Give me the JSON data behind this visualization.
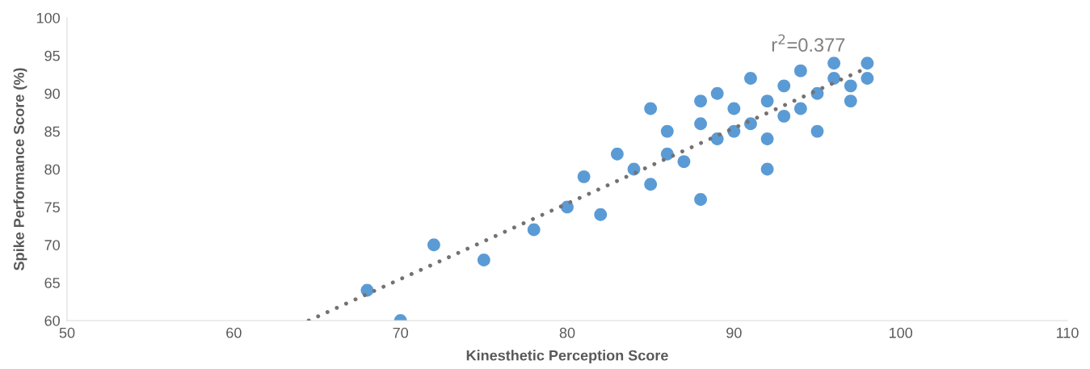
{
  "chart_data": {
    "type": "scatter",
    "xlabel": "Kinesthetic Perception Score",
    "ylabel": "Spike Performance Score (%)",
    "xlim": [
      50,
      110
    ],
    "xticks": [
      50,
      60,
      70,
      80,
      90,
      100,
      110
    ],
    "ylim": [
      60,
      100
    ],
    "yticks": [
      60,
      65,
      70,
      75,
      80,
      85,
      90,
      95,
      100
    ],
    "grid": false,
    "legend": false,
    "series": [
      {
        "marker": "circle",
        "color": "#5b9bd5",
        "x": [
          68,
          70,
          72,
          75,
          78,
          80,
          81,
          82,
          83,
          84,
          85,
          85,
          86,
          86,
          87,
          88,
          88,
          88,
          89,
          89,
          90,
          90,
          91,
          91,
          92,
          92,
          92,
          93,
          93,
          94,
          94,
          95,
          95,
          96,
          96,
          97,
          97,
          98,
          98
        ],
        "values": [
          64,
          60,
          70,
          68,
          72,
          75,
          79,
          74,
          82,
          80,
          88,
          78,
          85,
          82,
          81,
          89,
          86,
          76,
          90,
          84,
          88,
          85,
          92,
          86,
          89,
          84,
          80,
          91,
          87,
          93,
          88,
          90,
          85,
          94,
          92,
          91,
          89,
          94,
          92
        ]
      },
      {
        "type": "line",
        "marker": "none",
        "color": "#767171",
        "line_style": "dotted",
        "x": [
          64.5,
          98
        ],
        "values": [
          60,
          93.4
        ]
      }
    ],
    "annotations": [
      "r$^{2}$=0.377"
    ]
  }
}
